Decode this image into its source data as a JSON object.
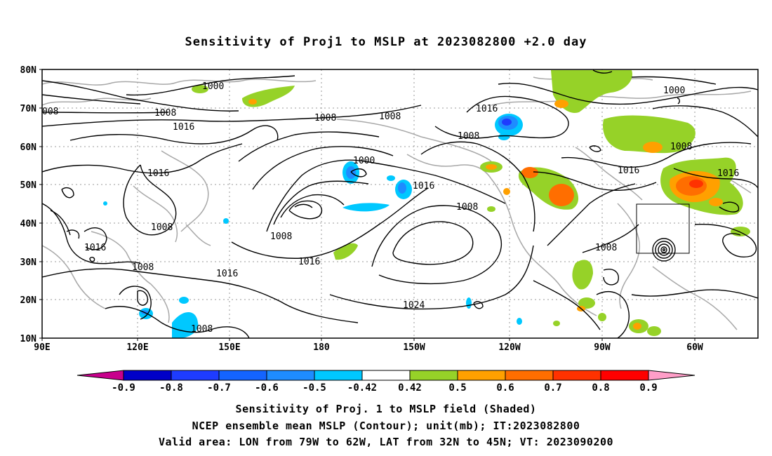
{
  "title": "Sensitivity of Proj1 to MSLP at 2023082800 +2.0 day",
  "lat_labels": [
    "80N",
    "70N",
    "60N",
    "50N",
    "40N",
    "30N",
    "20N",
    "10N"
  ],
  "lon_labels": [
    "90E",
    "120E",
    "150E",
    "180",
    "150W",
    "120W",
    "90W",
    "60W"
  ],
  "contour_labels": [
    "1000",
    "1000",
    "1000",
    "008",
    "1008",
    "1008",
    "1008",
    "1008",
    "1008",
    "1008",
    "1008",
    "1008",
    "1008",
    "1016",
    "1016",
    "1016",
    "1016",
    "1016",
    "1016",
    "1016",
    "1016",
    "1016",
    "1024",
    "1008",
    "1008"
  ],
  "colorbar": {
    "ticks": [
      "-0.9",
      "-0.8",
      "-0.7",
      "-0.6",
      "-0.5",
      "-0.42",
      "0.42",
      "0.5",
      "0.6",
      "0.7",
      "0.8",
      "0.9"
    ],
    "colors": [
      "#c8008c",
      "#0000c8",
      "#1e3cff",
      "#1464ff",
      "#1e8cff",
      "#00c8ff",
      "#ffffff",
      "#96d228",
      "#ffa000",
      "#ff6e00",
      "#ff3200",
      "#ff0000",
      "#ff9ec8"
    ]
  },
  "captions": [
    "Sensitivity of Proj. 1 to MSLP field (Shaded)",
    "NCEP ensemble mean MSLP (Contour); unit(mb); IT:2023082800",
    "Valid area: LON from 79W to 62W, LAT from 32N to 45N; VT: 2023090200"
  ]
}
